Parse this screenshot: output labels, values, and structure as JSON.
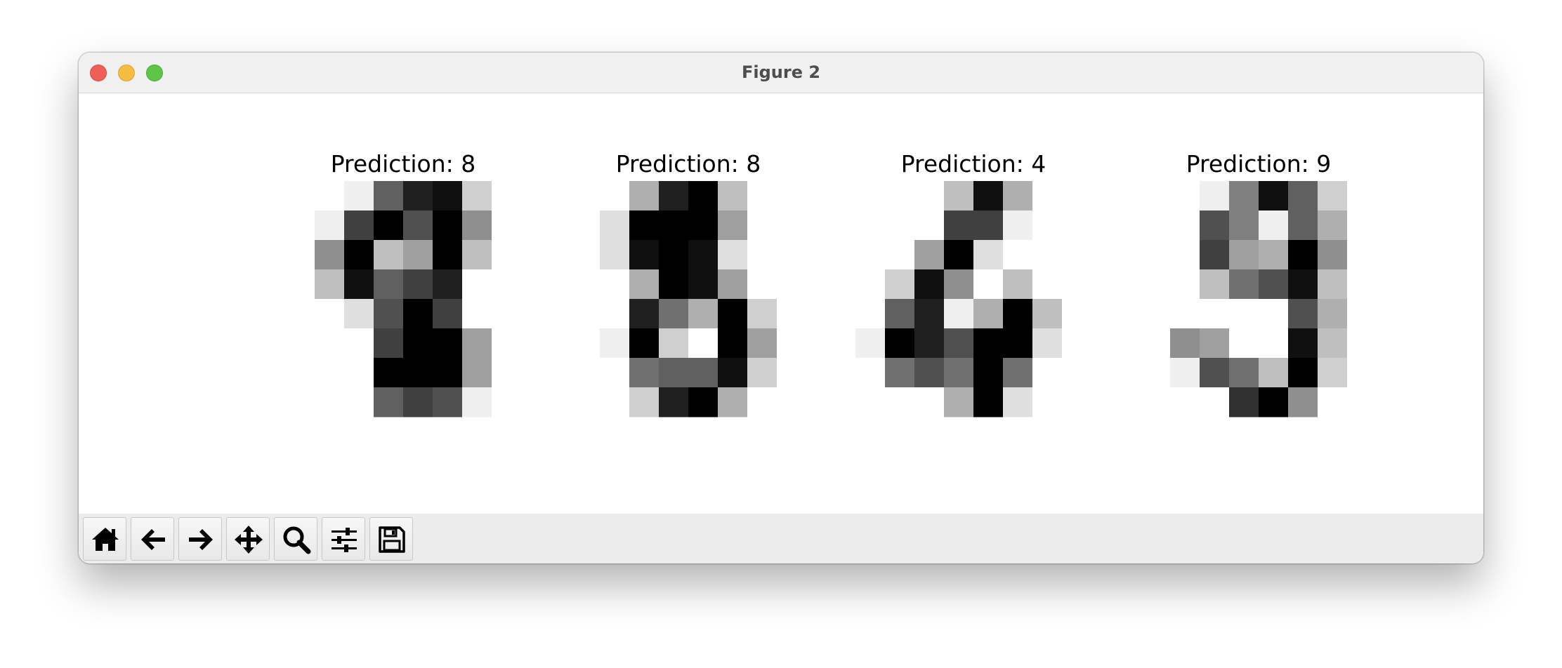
{
  "window": {
    "title": "Figure 2"
  },
  "toolbar": {
    "buttons": [
      {
        "name": "home-button",
        "icon": "home-icon"
      },
      {
        "name": "back-button",
        "icon": "arrow-left-icon"
      },
      {
        "name": "forward-button",
        "icon": "arrow-right-icon"
      },
      {
        "name": "pan-button",
        "icon": "move-icon"
      },
      {
        "name": "zoom-button",
        "icon": "magnifier-icon"
      },
      {
        "name": "configure-subplots-button",
        "icon": "sliders-icon"
      },
      {
        "name": "save-button",
        "icon": "floppy-disk-icon"
      }
    ]
  },
  "chart_data": [
    {
      "type": "heatmap",
      "title": "Prediction: 8",
      "colormap": "gray_r",
      "vmin": 0,
      "vmax": 16,
      "values": [
        [
          0,
          0,
          1,
          10,
          14,
          15,
          3,
          0
        ],
        [
          0,
          1,
          12,
          16,
          11,
          16,
          7,
          0
        ],
        [
          0,
          7,
          16,
          4,
          6,
          16,
          4,
          0
        ],
        [
          0,
          4,
          15,
          10,
          12,
          14,
          0,
          0
        ],
        [
          0,
          0,
          2,
          11,
          16,
          12,
          0,
          0
        ],
        [
          0,
          0,
          0,
          12,
          16,
          16,
          6,
          0
        ],
        [
          0,
          0,
          0,
          16,
          16,
          16,
          6,
          0
        ],
        [
          0,
          0,
          0,
          10,
          12,
          11,
          1,
          0
        ]
      ]
    },
    {
      "type": "heatmap",
      "title": "Prediction: 8",
      "colormap": "gray_r",
      "vmin": 0,
      "vmax": 16,
      "values": [
        [
          0,
          0,
          5,
          14,
          16,
          4,
          0,
          0
        ],
        [
          0,
          2,
          16,
          16,
          16,
          6,
          0,
          0
        ],
        [
          0,
          2,
          15,
          16,
          15,
          2,
          0,
          0
        ],
        [
          0,
          0,
          5,
          16,
          15,
          6,
          0,
          0
        ],
        [
          0,
          0,
          14,
          9,
          5,
          16,
          3,
          0
        ],
        [
          0,
          1,
          16,
          3,
          0,
          16,
          6,
          0
        ],
        [
          0,
          0,
          9,
          10,
          10,
          15,
          3,
          0
        ],
        [
          0,
          0,
          3,
          14,
          16,
          5,
          0,
          0
        ]
      ]
    },
    {
      "type": "heatmap",
      "title": "Prediction: 4",
      "colormap": "gray_r",
      "vmin": 0,
      "vmax": 16,
      "values": [
        [
          0,
          0,
          0,
          4,
          15,
          5,
          0,
          0
        ],
        [
          0,
          0,
          0,
          12,
          12,
          1,
          0,
          0
        ],
        [
          0,
          0,
          6,
          16,
          2,
          0,
          0,
          0
        ],
        [
          0,
          3,
          15,
          7,
          0,
          4,
          0,
          0
        ],
        [
          0,
          10,
          14,
          1,
          5,
          16,
          4,
          0
        ],
        [
          1,
          16,
          14,
          11,
          16,
          16,
          2,
          0
        ],
        [
          0,
          9,
          11,
          9,
          16,
          9,
          0,
          0
        ],
        [
          0,
          0,
          0,
          5,
          16,
          2,
          0,
          0
        ]
      ]
    },
    {
      "type": "heatmap",
      "title": "Prediction: 9",
      "colormap": "gray_r",
      "vmin": 0,
      "vmax": 16,
      "values": [
        [
          0,
          0,
          1,
          8,
          15,
          10,
          3,
          0
        ],
        [
          0,
          0,
          11,
          8,
          1,
          10,
          5,
          0
        ],
        [
          0,
          0,
          12,
          6,
          5,
          16,
          7,
          0
        ],
        [
          0,
          0,
          4,
          9,
          11,
          15,
          4,
          0
        ],
        [
          0,
          0,
          0,
          0,
          0,
          11,
          5,
          0
        ],
        [
          0,
          7,
          6,
          0,
          0,
          15,
          4,
          0
        ],
        [
          0,
          1,
          11,
          9,
          4,
          16,
          3,
          0
        ],
        [
          0,
          0,
          0,
          13,
          16,
          7,
          0,
          0
        ]
      ]
    }
  ]
}
